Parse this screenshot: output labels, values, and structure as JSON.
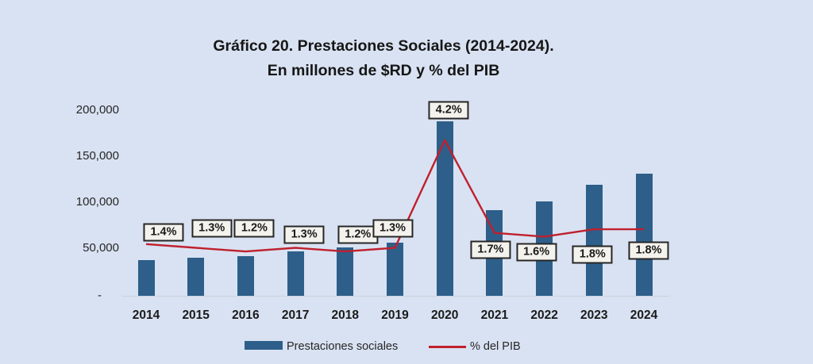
{
  "title": {
    "line1": "Gráfico 20. Prestaciones Sociales (2014-2024).",
    "line2": "En millones de $RD y % del PIB"
  },
  "legend": {
    "bars_label": "Prestaciones sociales",
    "line_label": "% del PIB"
  },
  "colors": {
    "background": "#d9e2f2",
    "bar": "#2d5f8a",
    "line": "#bf202d",
    "label_box_bg": "#f4f2ec",
    "label_box_border": "#262626",
    "axis_line": "#cdd2dc"
  },
  "chart_data": {
    "type": "bar",
    "subtype": "bar-with-line-overlay",
    "title": "Gráfico 20. Prestaciones Sociales (2014-2024). En millones de $RD y % del PIB",
    "categories": [
      "2014",
      "2015",
      "2016",
      "2017",
      "2018",
      "2019",
      "2020",
      "2021",
      "2022",
      "2023",
      "2024"
    ],
    "series": [
      {
        "name": "Prestaciones sociales",
        "type": "bar",
        "unit": "millones de $RD",
        "values": [
          39000,
          41000,
          43000,
          48000,
          52000,
          57000,
          188000,
          92000,
          102000,
          120000,
          132000
        ]
      },
      {
        "name": "% del PIB",
        "type": "line",
        "unit": "%",
        "values": [
          1.4,
          1.3,
          1.2,
          1.3,
          1.2,
          1.3,
          4.2,
          1.7,
          1.6,
          1.8,
          1.8
        ],
        "labels": [
          "1.4%",
          "1.3%",
          "1.2%",
          "1.3%",
          "1.2%",
          "1.3%",
          "4.2%",
          "1.7%",
          "1.6%",
          "1.8%",
          "1.8%"
        ]
      }
    ],
    "y_axis": {
      "ticks": [
        "200,000",
        "150,000",
        "100,000",
        "50,000",
        "-"
      ],
      "tick_values": [
        200000,
        150000,
        100000,
        50000,
        0
      ],
      "min": 0,
      "max": 200000
    },
    "grid": "baseline-only",
    "legend_position": "bottom"
  }
}
